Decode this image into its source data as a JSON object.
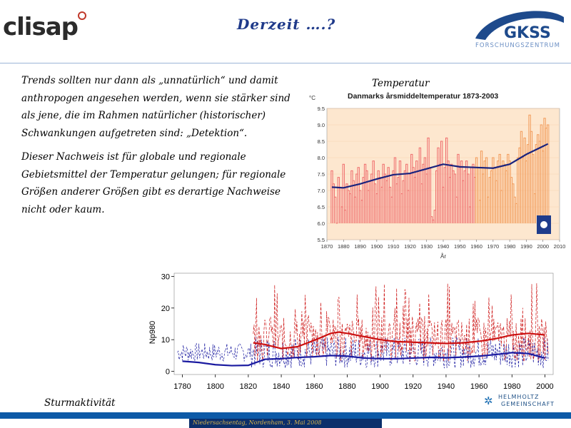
{
  "header": {
    "logo_left": "clisap",
    "title": "Derzeit ….?",
    "logo_right": "GKSS",
    "logo_right_sub": "FORSCHUNGSZENTRUM"
  },
  "text": {
    "paragraph1": "Trends sollten nur dann als „unnatürlich“ und damit anthropogen angesehen werden, wenn sie stärker sind als jene, die im Rahmen natürlicher (historischer) Schwankungen aufgetreten sind: „Detektion“.",
    "paragraph2": "Dieser Nachweis ist für globale und regionale Gebietsmittel der Temperatur gelungen; für regionale Größen anderer Größen gibt es derartige Nachweise nicht oder kaum."
  },
  "temperature_label": "Temperatur",
  "storm_label": "Sturmaktivität",
  "footer": {
    "helmholtz_line1": "HELMHOLTZ",
    "helmholtz_line2": "GEMEINSCHAFT",
    "event": "Niedersachsentag, Nordenham, 3. Mai 2008"
  },
  "colors": {
    "title": "#1f3a8a",
    "accent": "#0d5aa7",
    "temp_bars": "#ef7c6c",
    "trend": "#1a237e",
    "storm_red": "#cc1111",
    "storm_blue": "#1a1aa0"
  },
  "chart_data": [
    {
      "type": "line",
      "title": "Danmarks årsmiddeltemperatur 1873-2003",
      "ylabel": "°C",
      "xlabel": "År",
      "xlim": [
        1870,
        2010
      ],
      "ylim": [
        5.5,
        9.5
      ],
      "xticks": [
        1870,
        1880,
        1890,
        1900,
        1910,
        1920,
        1930,
        1940,
        1950,
        1960,
        1970,
        1980,
        1990,
        2000,
        2010
      ],
      "yticks": [
        "5.5",
        "6.0",
        "6.5",
        "7.0",
        "7.5",
        "8.0",
        "8.5",
        "9.0",
        "9.5"
      ],
      "series": [
        {
          "values": [
            7.6,
            7.2,
            6.8,
            6.0,
            7.4,
            7.1,
            6.5,
            7.8,
            6.4,
            7.2,
            7.0,
            6.9,
            7.6,
            7.3,
            6.8,
            7.5,
            7.7,
            7.0,
            6.7,
            7.4,
            7.8,
            7.6,
            7.0,
            7.3,
            7.5,
            7.9,
            7.2,
            6.9,
            7.6,
            7.4,
            7.1,
            7.8,
            7.5,
            7.3,
            7.7,
            7.1,
            6.8,
            7.6,
            8.0,
            7.2,
            7.4,
            7.9,
            6.9,
            7.3,
            7.6,
            7.8,
            7.0,
            7.5,
            8.1,
            7.7,
            7.4,
            7.9,
            7.6,
            8.3,
            7.2,
            7.8,
            8.0,
            7.5,
            8.6,
            7.7,
            6.2,
            6.1,
            6.4,
            7.6,
            8.3,
            7.8,
            8.5,
            7.1,
            7.7,
            8.6,
            7.9,
            7.4,
            7.8,
            7.6,
            7.5,
            6.8,
            8.1,
            7.7,
            7.9,
            7.3,
            7.6,
            7.9,
            7.5,
            6.5,
            7.7,
            7.8,
            7.4,
            8.0,
            7.7,
            6.7,
            8.2,
            7.5,
            7.9,
            8.0,
            6.8,
            7.4,
            7.6,
            8.0,
            7.7,
            7.3,
            7.9,
            8.1,
            7.0,
            7.9,
            7.8,
            7.6,
            8.1,
            7.9,
            7.4,
            7.2,
            6.8,
            6.6,
            8.0,
            8.3,
            8.8,
            8.0,
            8.6,
            7.9,
            8.4,
            9.3,
            8.8,
            8.1,
            6.9,
            8.4,
            8.7,
            8.5,
            9.0,
            8.2,
            9.2,
            8.9,
            9.0
          ]
        },
        {
          "name": "trend",
          "x": [
            1873,
            1880,
            1890,
            1900,
            1910,
            1920,
            1930,
            1940,
            1950,
            1960,
            1970,
            1980,
            1990,
            2003
          ],
          "values": [
            7.1,
            7.08,
            7.2,
            7.35,
            7.48,
            7.52,
            7.66,
            7.8,
            7.72,
            7.7,
            7.68,
            7.8,
            8.1,
            8.42
          ]
        }
      ]
    },
    {
      "type": "line",
      "ylabel": "Np980",
      "xlim": [
        1775,
        2005
      ],
      "ylim": [
        -1,
        31
      ],
      "xticks": [
        1780,
        1800,
        1820,
        1840,
        1860,
        1880,
        1900,
        1920,
        1940,
        1960,
        1980,
        2000
      ],
      "yticks": [
        0,
        10,
        20,
        30
      ],
      "series": [
        {
          "name": "red smoothed",
          "x": [
            1823,
            1830,
            1840,
            1850,
            1860,
            1870,
            1875,
            1880,
            1890,
            1900,
            1910,
            1920,
            1930,
            1940,
            1950,
            1960,
            1970,
            1980,
            1990,
            2000
          ],
          "values": [
            9.0,
            8.5,
            7.2,
            7.8,
            9.8,
            12.0,
            12.4,
            12.0,
            11.0,
            10.0,
            9.4,
            9.2,
            9.0,
            8.8,
            9.0,
            9.5,
            10.3,
            11.5,
            12.0,
            11.5
          ]
        },
        {
          "name": "blue smoothed",
          "x": [
            1780,
            1790,
            1800,
            1810,
            1820,
            1830,
            1840,
            1850,
            1860,
            1870,
            1880,
            1890,
            1900,
            1910,
            1920,
            1930,
            1940,
            1950,
            1960,
            1970,
            1980,
            1990,
            2000
          ],
          "values": [
            3.2,
            2.8,
            2.1,
            1.8,
            1.9,
            3.8,
            4.0,
            4.4,
            4.6,
            5.0,
            4.8,
            4.2,
            4.0,
            4.0,
            4.2,
            4.4,
            4.3,
            4.5,
            4.8,
            5.3,
            5.9,
            5.6,
            4.2
          ]
        }
      ]
    }
  ]
}
